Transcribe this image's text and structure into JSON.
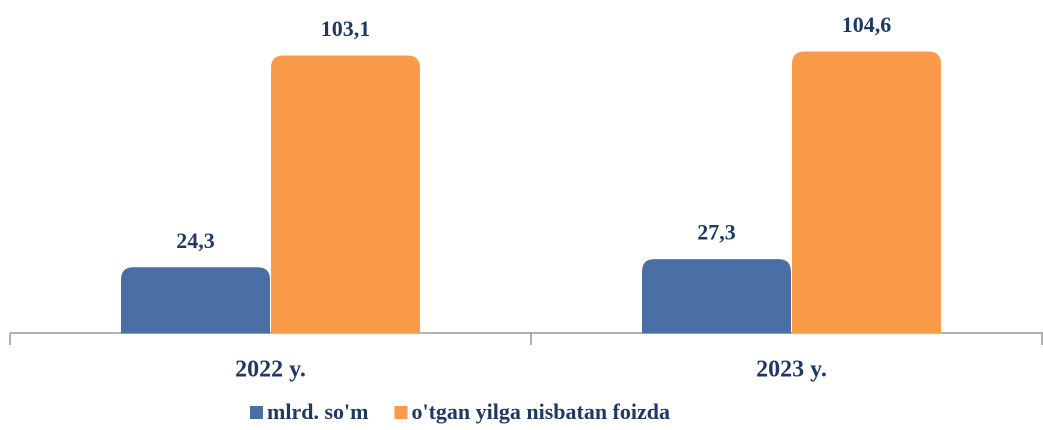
{
  "chart_data": {
    "type": "bar",
    "categories": [
      "2022 y.",
      "2023 y."
    ],
    "series": [
      {
        "name": "mlrd. so'm",
        "color": "#4a6fa5",
        "values": [
          24.3,
          27.3
        ],
        "value_labels": [
          "24,3",
          "27,3"
        ]
      },
      {
        "name": "o'tgan yilga nisbatan foizda",
        "color": "#f99b48",
        "values": [
          103.1,
          104.6
        ],
        "value_labels": [
          "103,1",
          "104,6"
        ]
      }
    ],
    "legend": "bottom"
  }
}
